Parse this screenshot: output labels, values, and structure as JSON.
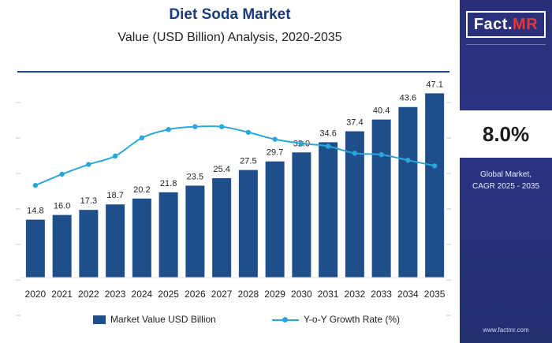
{
  "header": {
    "title": "Diet Soda Market",
    "subtitle": "Value (USD Billion) Analysis, 2020-2035"
  },
  "sidebar": {
    "logo_main": "Fact.",
    "logo_accent": "MR",
    "cagr_value": "8.0%",
    "cagr_label_line1": "Global Market,",
    "cagr_label_line2": "CAGR 2025 - 2035",
    "website": "www.factmr.com"
  },
  "legend": {
    "bar_label": "Market Value USD Billion",
    "line_label": "Y-o-Y Growth Rate (%)"
  },
  "colors": {
    "bar": "#1f4f8a",
    "line": "#2aa6dc",
    "sidebar": "#2b2f7a"
  },
  "chart_data": {
    "type": "bar",
    "categories": [
      "2020",
      "2021",
      "2022",
      "2023",
      "2024",
      "2025",
      "2026",
      "2027",
      "2028",
      "2029",
      "2030",
      "2031",
      "2032",
      "2033",
      "2034",
      "2035"
    ],
    "series": [
      {
        "name": "Market Value USD Billion",
        "type": "bar",
        "values": [
          14.8,
          16.0,
          17.3,
          18.7,
          20.2,
          21.8,
          23.5,
          25.4,
          27.5,
          29.7,
          32.0,
          34.6,
          37.4,
          40.4,
          43.6,
          47.1
        ]
      },
      {
        "name": "Y-o-Y Growth Rate (%)",
        "type": "line",
        "values": [
          6.6,
          7.4,
          8.1,
          8.7,
          10.0,
          10.6,
          10.8,
          10.8,
          10.4,
          9.9,
          9.6,
          9.4,
          8.9,
          8.8,
          8.4,
          8.0
        ]
      }
    ],
    "ylim": [
      0,
      50
    ],
    "y2lim": [
      0,
      14
    ],
    "legend_position": "bottom",
    "grid": false
  }
}
